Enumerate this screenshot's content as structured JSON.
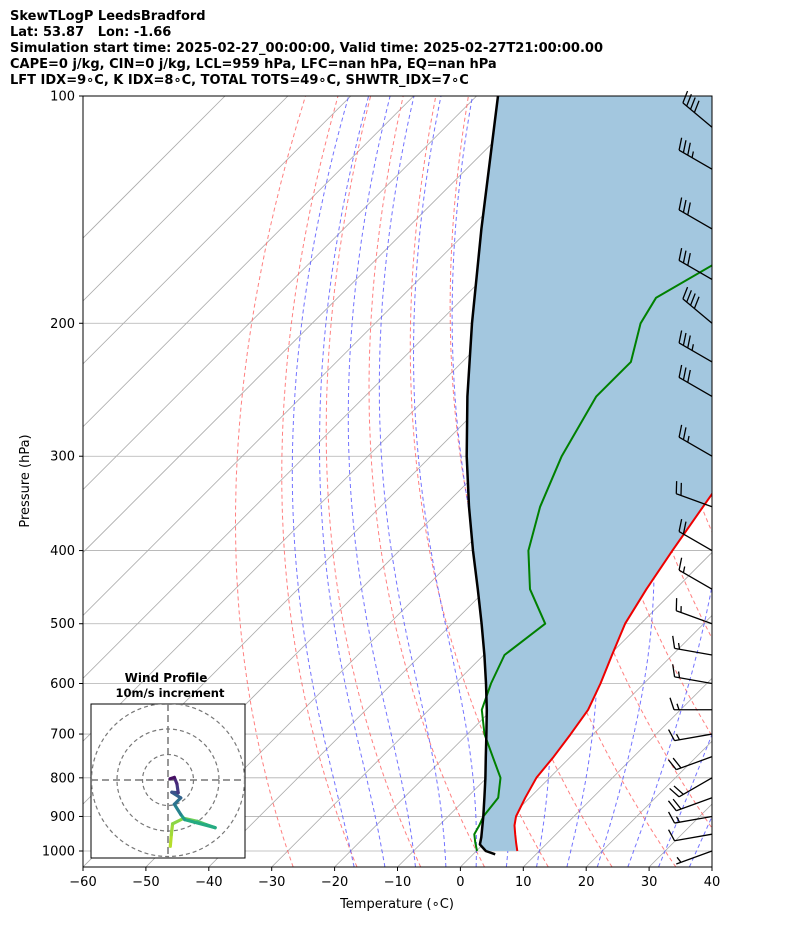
{
  "header": {
    "line1": "SkewTLogP LeedsBradford",
    "line2": "Lat: 53.87   Lon: -1.66",
    "line3": "Simulation start time: 2025-02-27_00:00:00, Valid time: 2025-02-27T21:00:00.00",
    "line4": "CAPE=0 j/kg, CIN=0 j/kg, LCL=959 hPa, LFC=nan hPa, EQ=nan hPa",
    "line5": "LFT IDX=9∘C, K IDX=8∘C, TOTAL TOTS=49∘C, SHWTR_IDX=7∘C"
  },
  "chart_data": {
    "type": "line",
    "chart_kind": "Skew-T log-P diagram",
    "xlabel": "Temperature (∘C)",
    "ylabel": "Pressure (hPa)",
    "xlim": [
      -60,
      40
    ],
    "ylim": [
      1050,
      100
    ],
    "y_scale": "log",
    "x_ticks": [
      "−60",
      "−50",
      "−40",
      "−30",
      "−20",
      "−10",
      "0",
      "10",
      "20",
      "30",
      "40"
    ],
    "y_ticks": [
      100,
      200,
      300,
      400,
      500,
      600,
      700,
      800,
      900,
      1000
    ],
    "grid": true,
    "colors": {
      "temperature": "#ee0000",
      "dewpoint": "#008000",
      "parcel": "#000000",
      "shading": "#a3c7df",
      "dry_adiabats": "#ff6a6a",
      "moist_adiabats": "#5a5aff",
      "isotherms": "#aaaaaa"
    },
    "temperature": {
      "pressure": [
        1000,
        975,
        950,
        925,
        900,
        850,
        800,
        750,
        700,
        650,
        600,
        550,
        500,
        450,
        400,
        350,
        300,
        270,
        250,
        200,
        170,
        150,
        125,
        100
      ],
      "values": [
        6.5,
        5.0,
        3.5,
        2.0,
        0.8,
        -0.7,
        -2.1,
        -2.7,
        -3.6,
        -4.7,
        -6.9,
        -9.6,
        -12.5,
        -14.6,
        -16.6,
        -18.7,
        -21.1,
        -20.2,
        -18.1,
        -13.6,
        -11.4,
        -10.2,
        -5.4,
        1.5
      ]
    },
    "dewpoint": {
      "pressure": [
        1000,
        975,
        950,
        925,
        900,
        850,
        800,
        750,
        700,
        650,
        600,
        550,
        500,
        450,
        400,
        350,
        300,
        250,
        225,
        200,
        185,
        150,
        100
      ],
      "values": [
        0.1,
        -1.5,
        -3.0,
        -3.6,
        -4.4,
        -5.0,
        -7.8,
        -12.4,
        -17.3,
        -21.6,
        -24.3,
        -26.7,
        -25.2,
        -33.1,
        -39.5,
        -44.6,
        -49.2,
        -53.2,
        -53.2,
        -57.8,
        -59.4,
        -51.4,
        -38.0
      ]
    },
    "parcel": {
      "pressure": [
        1010,
        1000,
        980,
        959,
        900,
        850,
        800,
        750,
        700,
        650,
        600,
        550,
        500,
        450,
        400,
        350,
        300,
        250,
        200,
        150,
        100
      ],
      "values": [
        3.5,
        1.5,
        -0.5,
        -1.4,
        -4.4,
        -7.2,
        -10.2,
        -13.5,
        -17.0,
        -20.8,
        -25.1,
        -29.9,
        -35.3,
        -41.4,
        -48.3,
        -55.9,
        -64.3,
        -73.7,
        -84.6,
        -98.1,
        -116.6
      ]
    },
    "wind_barbs": {
      "pressure": [
        1000,
        950,
        900,
        850,
        800,
        750,
        700,
        650,
        600,
        550,
        500,
        450,
        400,
        350,
        300,
        250,
        225,
        200,
        175,
        150,
        125,
        110
      ],
      "speed_kt": [
        5,
        10,
        15,
        20,
        20,
        20,
        15,
        15,
        15,
        15,
        15,
        15,
        20,
        20,
        25,
        30,
        35,
        40,
        30,
        30,
        35,
        40
      ],
      "direction_deg": [
        250,
        260,
        260,
        250,
        240,
        250,
        260,
        270,
        280,
        280,
        290,
        300,
        300,
        290,
        300,
        300,
        300,
        310,
        300,
        300,
        300,
        310
      ]
    },
    "hodograph": {
      "title": "Wind Profile",
      "subtitle": "10m/s increment",
      "rings_ms": [
        10,
        20,
        30
      ],
      "points": [
        [
          0.9,
          -26.0
        ],
        [
          1.3,
          -21.5
        ],
        [
          1.8,
          -17.2
        ],
        [
          6.2,
          -15.0
        ],
        [
          11.5,
          -16.2
        ],
        [
          15.0,
          -17.5
        ],
        [
          18.5,
          -18.7
        ],
        [
          6.5,
          -15.5
        ],
        [
          5.0,
          -13.5
        ],
        [
          2.5,
          -9.5
        ],
        [
          5.0,
          -7.0
        ],
        [
          1.5,
          -4.8
        ],
        [
          4.0,
          -5.0
        ],
        [
          3.5,
          -1.5
        ],
        [
          2.5,
          1.0
        ],
        [
          0.8,
          0.5
        ]
      ]
    }
  }
}
